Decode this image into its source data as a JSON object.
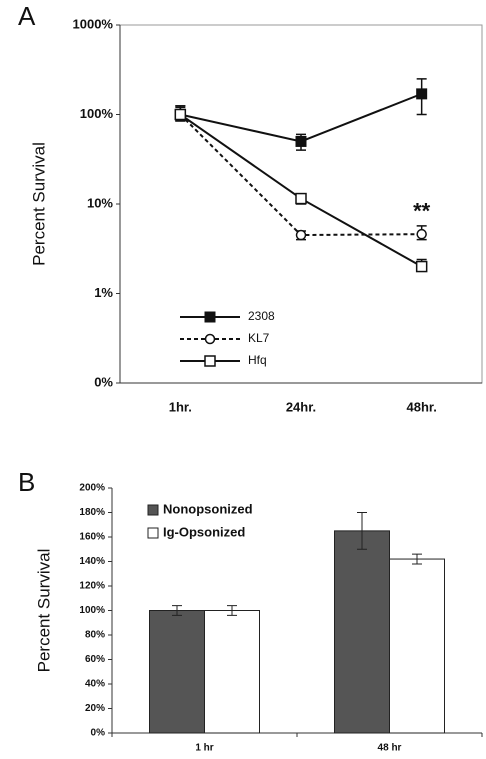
{
  "chart_data": [
    {
      "type": "line",
      "panel": "A",
      "ylabel": "Percent Survival",
      "log_y": true,
      "categories": [
        "1hr.",
        "24hr.",
        "48hr."
      ],
      "ylim": [
        0.1,
        1000
      ],
      "yticks": [
        {
          "value": 0.1,
          "label": "0%"
        },
        {
          "value": 1,
          "label": "1%"
        },
        {
          "value": 10,
          "label": "10%"
        },
        {
          "value": 100,
          "label": "100%"
        },
        {
          "value": 1000,
          "label": "1000%"
        }
      ],
      "series": [
        {
          "name": "2308",
          "color": "#111111",
          "dash": false,
          "marker": "filled-square",
          "values": [
            100,
            50,
            170
          ],
          "lower": [
            85,
            40,
            100
          ],
          "upper": [
            125,
            60,
            250
          ]
        },
        {
          "name": "KL7",
          "color": "#111111",
          "dash": true,
          "marker": "open-circle",
          "values": [
            100,
            4.5,
            4.6
          ],
          "lower": [
            85,
            4,
            4
          ],
          "upper": [
            125,
            5,
            5.7
          ]
        },
        {
          "name": "Hfq",
          "color": "#111111",
          "dash": false,
          "marker": "open-square",
          "values": [
            100,
            11.5,
            2.0
          ],
          "lower": [
            85,
            10,
            1.8
          ],
          "upper": [
            120,
            13,
            2.4
          ]
        }
      ],
      "annotation": "**"
    },
    {
      "type": "bar",
      "panel": "B",
      "ylabel": "Percent Survival",
      "categories": [
        "1 hr",
        "48 hr"
      ],
      "ylim": [
        0,
        200
      ],
      "yticks": [
        {
          "value": 0,
          "label": "0%"
        },
        {
          "value": 20,
          "label": "20%"
        },
        {
          "value": 40,
          "label": "40%"
        },
        {
          "value": 60,
          "label": "60%"
        },
        {
          "value": 80,
          "label": "80%"
        },
        {
          "value": 100,
          "label": "100%"
        },
        {
          "value": 120,
          "label": "120%"
        },
        {
          "value": 140,
          "label": "140%"
        },
        {
          "value": 160,
          "label": "160%"
        },
        {
          "value": 180,
          "label": "180%"
        },
        {
          "value": 200,
          "label": "200%"
        }
      ],
      "series": [
        {
          "name": "Nonopsonized",
          "color": "#555555",
          "values": [
            100,
            165
          ],
          "errors": [
            4,
            15
          ]
        },
        {
          "name": "Ig-Opsonized",
          "color": "#ffffff",
          "values": [
            100,
            142
          ],
          "errors": [
            4,
            4
          ]
        }
      ]
    }
  ]
}
